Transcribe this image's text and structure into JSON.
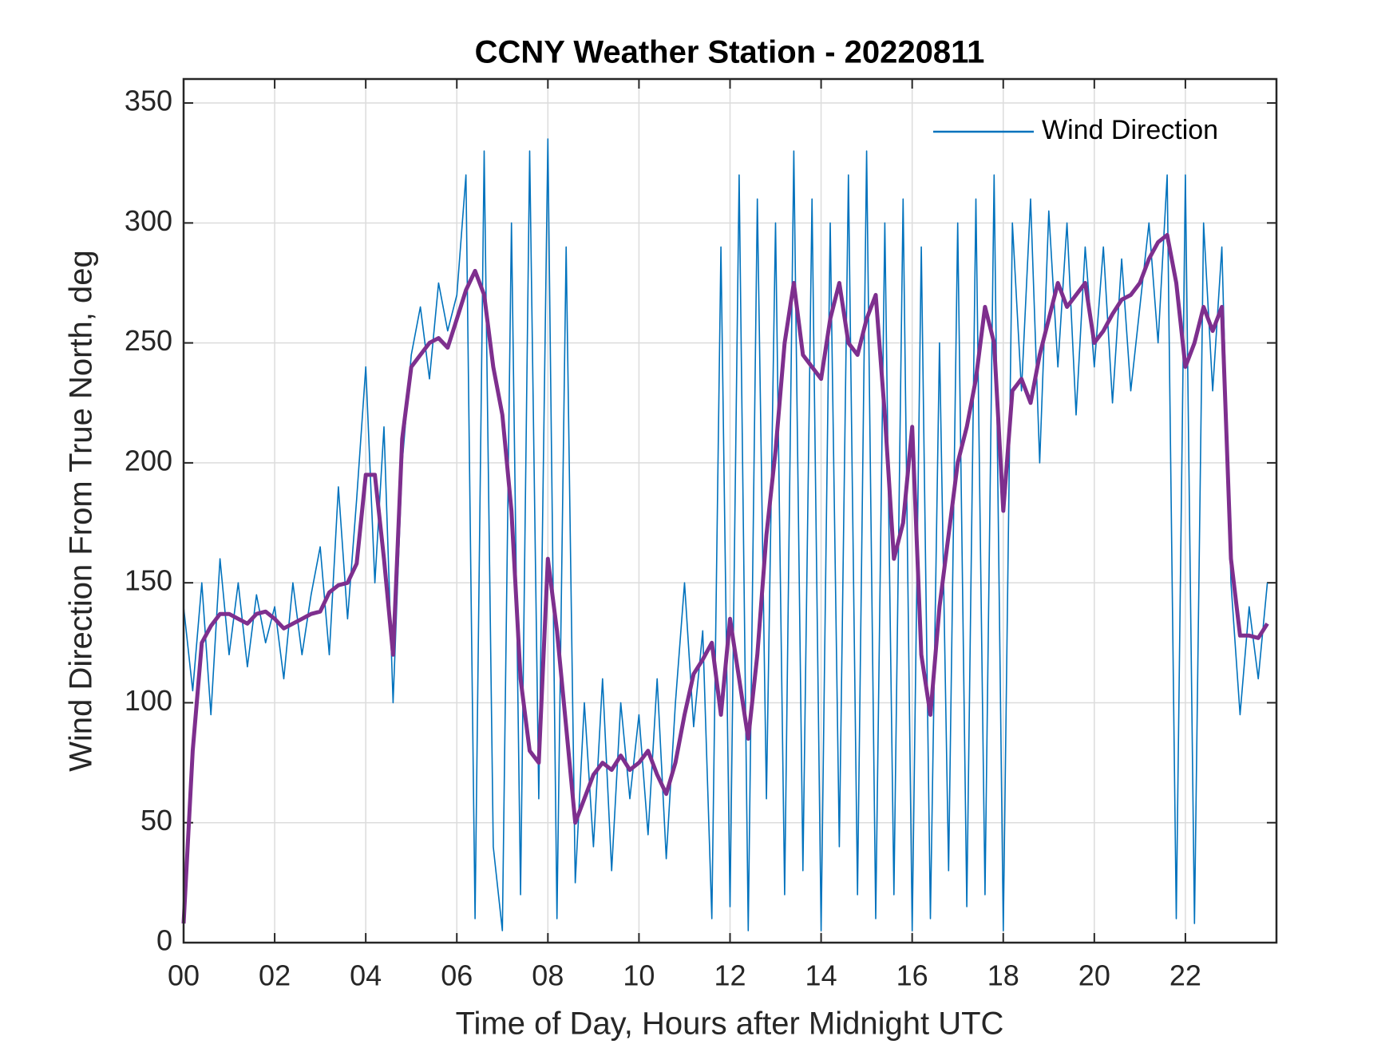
{
  "chart_data": {
    "type": "line",
    "title": "CCNY Weather Station - 20220811",
    "xlabel": "Time of Day, Hours after Midnight UTC",
    "ylabel": "Wind Direction From True North, deg",
    "xlim": [
      0,
      24
    ],
    "ylim": [
      0,
      360
    ],
    "xticks": [
      {
        "value": 0,
        "label": "00"
      },
      {
        "value": 2,
        "label": "02"
      },
      {
        "value": 4,
        "label": "04"
      },
      {
        "value": 6,
        "label": "06"
      },
      {
        "value": 8,
        "label": "08"
      },
      10,
      12,
      14,
      16,
      18,
      20,
      22
    ],
    "yticks": [
      0,
      50,
      100,
      150,
      200,
      250,
      300,
      350
    ],
    "grid": true,
    "legend": "upper right",
    "x": [
      0,
      0.2,
      0.4,
      0.6,
      0.8,
      1,
      1.2,
      1.4,
      1.6,
      1.8,
      2,
      2.2,
      2.4,
      2.6,
      2.8,
      3,
      3.2,
      3.4,
      3.6,
      3.8,
      4,
      4.2,
      4.4,
      4.6,
      4.8,
      5,
      5.2,
      5.4,
      5.6,
      5.8,
      6,
      6.2,
      6.4,
      6.6,
      6.8,
      7,
      7.2,
      7.4,
      7.6,
      7.8,
      8,
      8.2,
      8.4,
      8.6,
      8.8,
      9,
      9.2,
      9.4,
      9.6,
      9.8,
      10,
      10.2,
      10.4,
      10.6,
      10.8,
      11,
      11.2,
      11.4,
      11.6,
      11.8,
      12,
      12.2,
      12.4,
      12.6,
      12.8,
      13,
      13.2,
      13.4,
      13.6,
      13.8,
      14,
      14.2,
      14.4,
      14.6,
      14.8,
      15,
      15.2,
      15.4,
      15.6,
      15.8,
      16,
      16.2,
      16.4,
      16.6,
      16.8,
      17,
      17.2,
      17.4,
      17.6,
      17.8,
      18,
      18.2,
      18.4,
      18.6,
      18.8,
      19,
      19.2,
      19.4,
      19.6,
      19.8,
      20,
      20.2,
      20.4,
      20.6,
      20.8,
      21,
      21.2,
      21.4,
      21.6,
      21.8,
      22,
      22.2,
      22.4,
      22.6,
      22.8,
      23,
      23.2,
      23.4,
      23.6,
      23.8
    ],
    "series": [
      {
        "name": "Wind Direction",
        "color": "#0072BD",
        "width": 1.6,
        "values": [
          140,
          105,
          150,
          95,
          160,
          120,
          150,
          115,
          145,
          125,
          140,
          110,
          150,
          120,
          145,
          165,
          120,
          190,
          135,
          185,
          240,
          150,
          215,
          100,
          200,
          245,
          265,
          235,
          275,
          255,
          270,
          320,
          10,
          330,
          40,
          5,
          300,
          20,
          330,
          60,
          335,
          10,
          290,
          25,
          100,
          40,
          110,
          30,
          100,
          60,
          95,
          45,
          110,
          35,
          100,
          150,
          90,
          130,
          10,
          290,
          15,
          320,
          5,
          310,
          60,
          300,
          20,
          330,
          30,
          310,
          5,
          300,
          40,
          320,
          20,
          330,
          10,
          300,
          20,
          310,
          5,
          290,
          10,
          250,
          30,
          300,
          15,
          310,
          20,
          320,
          5,
          300,
          230,
          310,
          200,
          305,
          240,
          300,
          220,
          290,
          240,
          290,
          225,
          285,
          230,
          265,
          300,
          250,
          320,
          10,
          320,
          8,
          300,
          230,
          290,
          150,
          95,
          140,
          110,
          150
        ]
      },
      {
        "color": "#7E2F8E",
        "width": 5,
        "values": [
          8,
          80,
          125,
          132,
          137,
          137,
          135,
          133,
          137,
          138,
          135,
          131,
          133,
          135,
          137,
          138,
          146,
          149,
          150,
          158,
          195,
          195,
          160,
          120,
          210,
          240,
          245,
          250,
          252,
          248,
          260,
          272,
          280,
          270,
          240,
          220,
          180,
          110,
          80,
          75,
          160,
          130,
          90,
          50,
          60,
          70,
          75,
          72,
          78,
          72,
          75,
          80,
          70,
          62,
          75,
          95,
          112,
          118,
          125,
          95,
          135,
          110,
          85,
          120,
          170,
          205,
          250,
          275,
          245,
          240,
          235,
          260,
          275,
          250,
          245,
          260,
          270,
          220,
          160,
          175,
          215,
          120,
          95,
          140,
          170,
          200,
          215,
          235,
          265,
          250,
          180,
          230,
          235,
          225,
          245,
          260,
          275,
          265,
          270,
          275,
          250,
          255,
          262,
          268,
          270,
          275,
          285,
          292,
          295,
          275,
          240,
          250,
          265,
          255,
          265,
          160,
          128,
          128,
          127,
          133
        ]
      }
    ]
  }
}
